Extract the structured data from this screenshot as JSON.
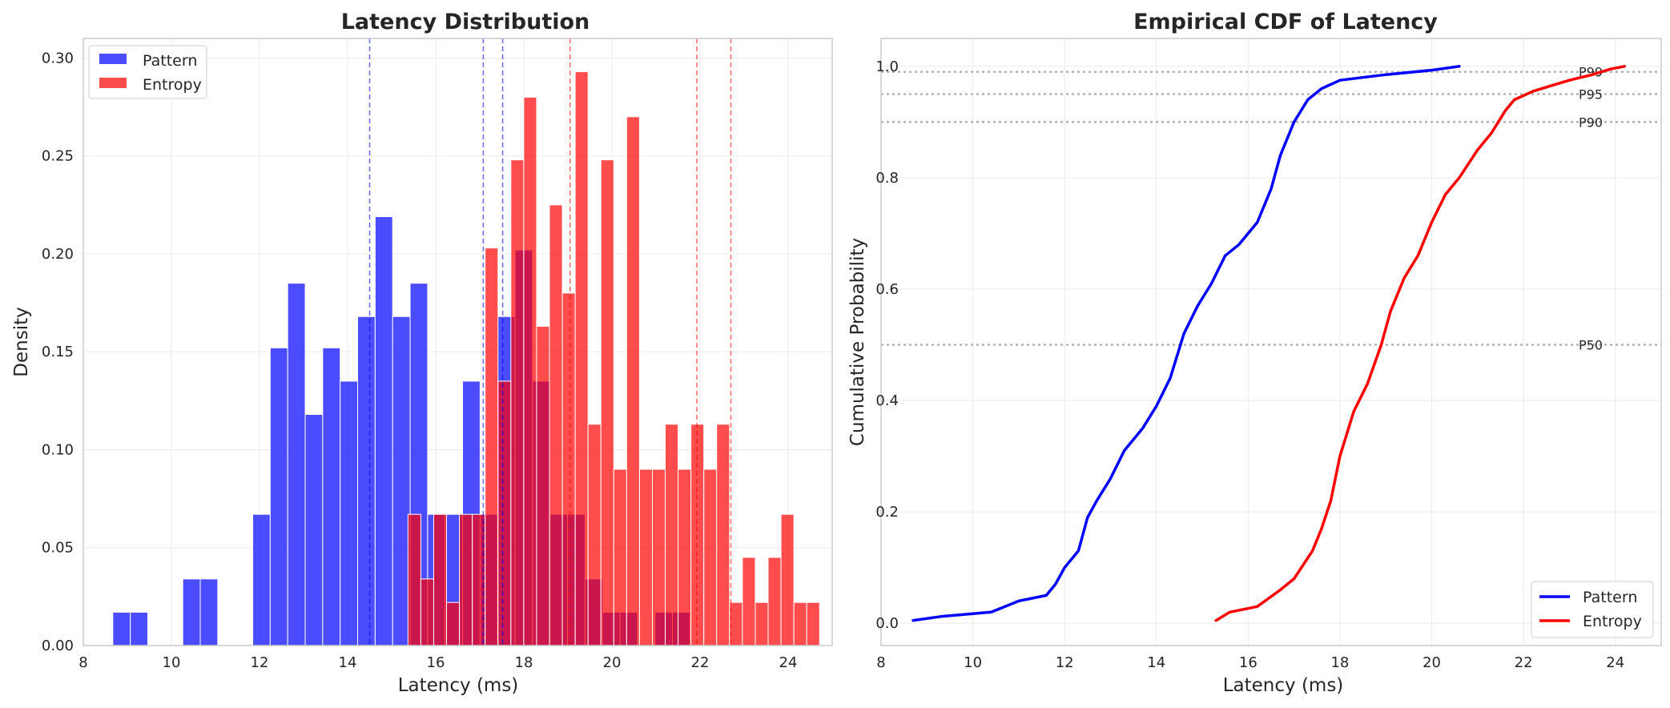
{
  "colors": {
    "pattern": "#0000FF",
    "entropy": "#FF0000",
    "grid": "#EBEBEB",
    "spine": "#CCCCCC",
    "text": "#262626",
    "reference_line": "#B3B3B3"
  },
  "chart_data": [
    {
      "type": "histogram",
      "title": "Latency Distribution",
      "xlabel": "Latency (ms)",
      "ylabel": "Density",
      "xlim": [
        8,
        25
      ],
      "ylim": [
        0,
        0.31
      ],
      "xticks": [
        8,
        10,
        12,
        14,
        16,
        18,
        20,
        22,
        24
      ],
      "xtick_labels": [
        "8",
        "10",
        "12",
        "14",
        "16",
        "18",
        "20",
        "22",
        "24"
      ],
      "yticks": [
        0,
        0.05,
        0.1,
        0.15,
        0.2,
        0.25,
        0.3
      ],
      "ytick_labels": [
        "0.00",
        "0.05",
        "0.10",
        "0.15",
        "0.20",
        "0.25",
        "0.30"
      ],
      "grid": true,
      "legend_position": "top-left",
      "series": [
        {
          "name": "Pattern",
          "color": "#0000FF",
          "opacity": 0.7,
          "bin_start": 8.67,
          "bin_width": 0.397,
          "values": [
            0.017,
            0.017,
            0,
            0,
            0.034,
            0.034,
            0,
            0,
            0.067,
            0.152,
            0.185,
            0.118,
            0.152,
            0.135,
            0.168,
            0.219,
            0.168,
            0.185,
            0.067,
            0.067,
            0.135,
            0.067,
            0.168,
            0.202,
            0.135,
            0.067,
            0.067,
            0.034,
            0.017,
            0.017,
            0,
            0.017,
            0.017
          ]
        },
        {
          "name": "Entropy",
          "color": "#FF0000",
          "opacity": 0.7,
          "bin_start": 15.37,
          "bin_width": 0.292,
          "values": [
            0.067,
            0.034,
            0.067,
            0.022,
            0.067,
            0.067,
            0.203,
            0.135,
            0.248,
            0.28,
            0.163,
            0.225,
            0.18,
            0.293,
            0.113,
            0.248,
            0.09,
            0.27,
            0.09,
            0.09,
            0.113,
            0.09,
            0.113,
            0.09,
            0.113,
            0.022,
            0.045,
            0.022,
            0.045,
            0.067,
            0.022,
            0.022
          ]
        }
      ],
      "percentile_lines": [
        {
          "series": "Pattern",
          "values": [
            14.5,
            17.08,
            17.52
          ]
        },
        {
          "series": "Entropy",
          "values": [
            19.05,
            21.93,
            22.7
          ]
        }
      ]
    },
    {
      "type": "line",
      "title": "Empirical CDF of Latency",
      "xlabel": "Latency (ms)",
      "ylabel": "Cumulative Probability",
      "xlim": [
        8,
        25
      ],
      "ylim": [
        -0.04,
        1.05
      ],
      "xticks": [
        8,
        10,
        12,
        14,
        16,
        18,
        20,
        22,
        24
      ],
      "xtick_labels": [
        "8",
        "10",
        "12",
        "14",
        "16",
        "18",
        "20",
        "22",
        "24"
      ],
      "yticks": [
        0,
        0.2,
        0.4,
        0.6,
        0.8,
        1.0
      ],
      "ytick_labels": [
        "0.0",
        "0.2",
        "0.4",
        "0.6",
        "0.8",
        "1.0"
      ],
      "grid": true,
      "legend_position": "bottom-right",
      "series": [
        {
          "name": "Pattern",
          "color": "#0000FF",
          "x": [
            8.7,
            9.3,
            10.4,
            11.0,
            11.6,
            11.8,
            12.0,
            12.3,
            12.5,
            12.7,
            13.0,
            13.3,
            13.7,
            14.0,
            14.3,
            14.6,
            14.9,
            15.2,
            15.5,
            15.8,
            16.2,
            16.5,
            16.7,
            17.0,
            17.3,
            17.6,
            18.0,
            19.0,
            20.0,
            20.6
          ],
          "y": [
            0.005,
            0.012,
            0.02,
            0.04,
            0.05,
            0.07,
            0.1,
            0.13,
            0.19,
            0.22,
            0.26,
            0.31,
            0.35,
            0.39,
            0.44,
            0.52,
            0.57,
            0.61,
            0.66,
            0.68,
            0.72,
            0.78,
            0.84,
            0.9,
            0.94,
            0.96,
            0.975,
            0.985,
            0.993,
            1.0
          ]
        },
        {
          "name": "Entropy",
          "color": "#FF0000",
          "x": [
            15.3,
            15.6,
            16.2,
            16.7,
            17.0,
            17.4,
            17.6,
            17.8,
            18.0,
            18.3,
            18.6,
            18.9,
            19.1,
            19.4,
            19.7,
            20.0,
            20.3,
            20.6,
            21.0,
            21.3,
            21.6,
            21.8,
            22.2,
            22.6,
            23.0,
            23.5,
            23.9,
            24.2
          ],
          "y": [
            0.005,
            0.02,
            0.03,
            0.06,
            0.08,
            0.13,
            0.17,
            0.22,
            0.3,
            0.38,
            0.43,
            0.5,
            0.56,
            0.62,
            0.66,
            0.72,
            0.77,
            0.8,
            0.85,
            0.88,
            0.92,
            0.94,
            0.955,
            0.965,
            0.975,
            0.985,
            0.995,
            1.0
          ]
        }
      ],
      "reference_lines": [
        {
          "label": "P99",
          "y": 0.99
        },
        {
          "label": "P95",
          "y": 0.95
        },
        {
          "label": "P90",
          "y": 0.9
        },
        {
          "label": "P50",
          "y": 0.5
        }
      ]
    }
  ]
}
